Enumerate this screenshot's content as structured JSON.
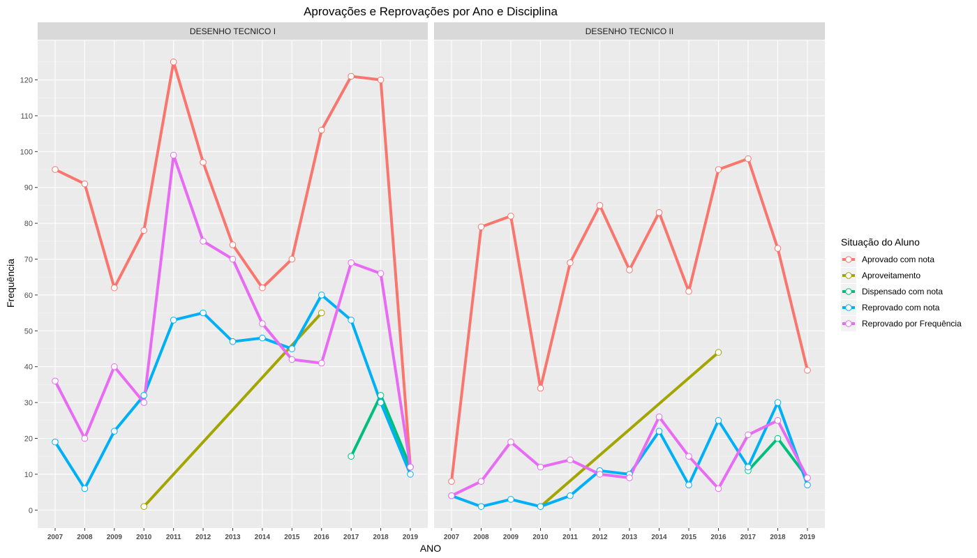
{
  "chart_data": {
    "type": "line",
    "title": "Aprovações e Reprovações por Ano e Disciplina",
    "xlabel": "ANO",
    "ylabel": "Frequência",
    "ylim": [
      -5,
      131
    ],
    "y_ticks": [
      0,
      10,
      20,
      30,
      40,
      50,
      60,
      70,
      80,
      90,
      100,
      110,
      120
    ],
    "categories": [
      "2007",
      "2008",
      "2009",
      "2010",
      "2011",
      "2012",
      "2013",
      "2014",
      "2015",
      "2016",
      "2017",
      "2018",
      "2019"
    ],
    "grid": true,
    "legend": {
      "title": "Situação do Aluno",
      "placement": "right",
      "entries": [
        {
          "name": "Aprovado com nota",
          "color": "#F8766D"
        },
        {
          "name": "Aproveitamento",
          "color": "#A3A500"
        },
        {
          "name": "Dispensado com nota",
          "color": "#00BF7D"
        },
        {
          "name": "Reprovado com nota",
          "color": "#00B0F6"
        },
        {
          "name": "Reprovado por Frequência",
          "color": "#E76BF3"
        }
      ]
    },
    "panels": [
      {
        "name": "DESENHO TECNICO I",
        "series": [
          {
            "name": "Aprovado com nota",
            "color": "#F8766D",
            "points": [
              [
                2007,
                95
              ],
              [
                2008,
                91
              ],
              [
                2009,
                62
              ],
              [
                2010,
                78
              ],
              [
                2011,
                125
              ],
              [
                2012,
                97
              ],
              [
                2013,
                74
              ],
              [
                2014,
                62
              ],
              [
                2015,
                70
              ],
              [
                2016,
                106
              ],
              [
                2017,
                121
              ],
              [
                2018,
                120
              ],
              [
                2019,
                12
              ]
            ]
          },
          {
            "name": "Aproveitamento",
            "color": "#A3A500",
            "points": [
              [
                2010,
                1
              ],
              [
                2016,
                55
              ]
            ]
          },
          {
            "name": "Dispensado com nota",
            "color": "#00BF7D",
            "points": [
              [
                2017,
                15
              ],
              [
                2018,
                32
              ],
              [
                2019,
                12
              ]
            ]
          },
          {
            "name": "Reprovado com nota",
            "color": "#00B0F6",
            "points": [
              [
                2007,
                19
              ],
              [
                2008,
                6
              ],
              [
                2009,
                22
              ],
              [
                2010,
                32
              ],
              [
                2011,
                53
              ],
              [
                2012,
                55
              ],
              [
                2013,
                47
              ],
              [
                2014,
                48
              ],
              [
                2015,
                45
              ],
              [
                2016,
                60
              ],
              [
                2017,
                53
              ],
              [
                2018,
                30
              ],
              [
                2019,
                10
              ]
            ]
          },
          {
            "name": "Reprovado por Frequência",
            "color": "#E76BF3",
            "points": [
              [
                2007,
                36
              ],
              [
                2008,
                20
              ],
              [
                2009,
                40
              ],
              [
                2010,
                30
              ],
              [
                2011,
                99
              ],
              [
                2012,
                75
              ],
              [
                2013,
                70
              ],
              [
                2014,
                52
              ],
              [
                2015,
                42
              ],
              [
                2016,
                41
              ],
              [
                2017,
                69
              ],
              [
                2018,
                66
              ],
              [
                2019,
                12
              ]
            ]
          }
        ]
      },
      {
        "name": "DESENHO TECNICO II",
        "series": [
          {
            "name": "Aprovado com nota",
            "color": "#F8766D",
            "points": [
              [
                2007,
                8
              ],
              [
                2008,
                79
              ],
              [
                2009,
                82
              ],
              [
                2010,
                34
              ],
              [
                2011,
                69
              ],
              [
                2012,
                85
              ],
              [
                2013,
                67
              ],
              [
                2014,
                83
              ],
              [
                2015,
                61
              ],
              [
                2016,
                95
              ],
              [
                2017,
                98
              ],
              [
                2018,
                73
              ],
              [
                2019,
                39
              ]
            ]
          },
          {
            "name": "Aproveitamento",
            "color": "#A3A500",
            "points": [
              [
                2010,
                1
              ],
              [
                2016,
                44
              ]
            ]
          },
          {
            "name": "Dispensado com nota",
            "color": "#00BF7D",
            "points": [
              [
                2017,
                11
              ],
              [
                2018,
                20
              ],
              [
                2019,
                9
              ]
            ]
          },
          {
            "name": "Reprovado com nota",
            "color": "#00B0F6",
            "points": [
              [
                2007,
                4
              ],
              [
                2008,
                1
              ],
              [
                2009,
                3
              ],
              [
                2010,
                1
              ],
              [
                2011,
                4
              ],
              [
                2012,
                11
              ],
              [
                2013,
                10
              ],
              [
                2014,
                22
              ],
              [
                2015,
                7
              ],
              [
                2016,
                25
              ],
              [
                2017,
                12
              ],
              [
                2018,
                30
              ],
              [
                2019,
                7
              ]
            ]
          },
          {
            "name": "Reprovado por Frequência",
            "color": "#E76BF3",
            "points": [
              [
                2007,
                4
              ],
              [
                2008,
                8
              ],
              [
                2009,
                19
              ],
              [
                2010,
                12
              ],
              [
                2011,
                14
              ],
              [
                2012,
                10
              ],
              [
                2013,
                9
              ],
              [
                2014,
                26
              ],
              [
                2015,
                15
              ],
              [
                2016,
                6
              ],
              [
                2017,
                21
              ],
              [
                2018,
                25
              ],
              [
                2019,
                9
              ]
            ]
          }
        ]
      }
    ]
  }
}
